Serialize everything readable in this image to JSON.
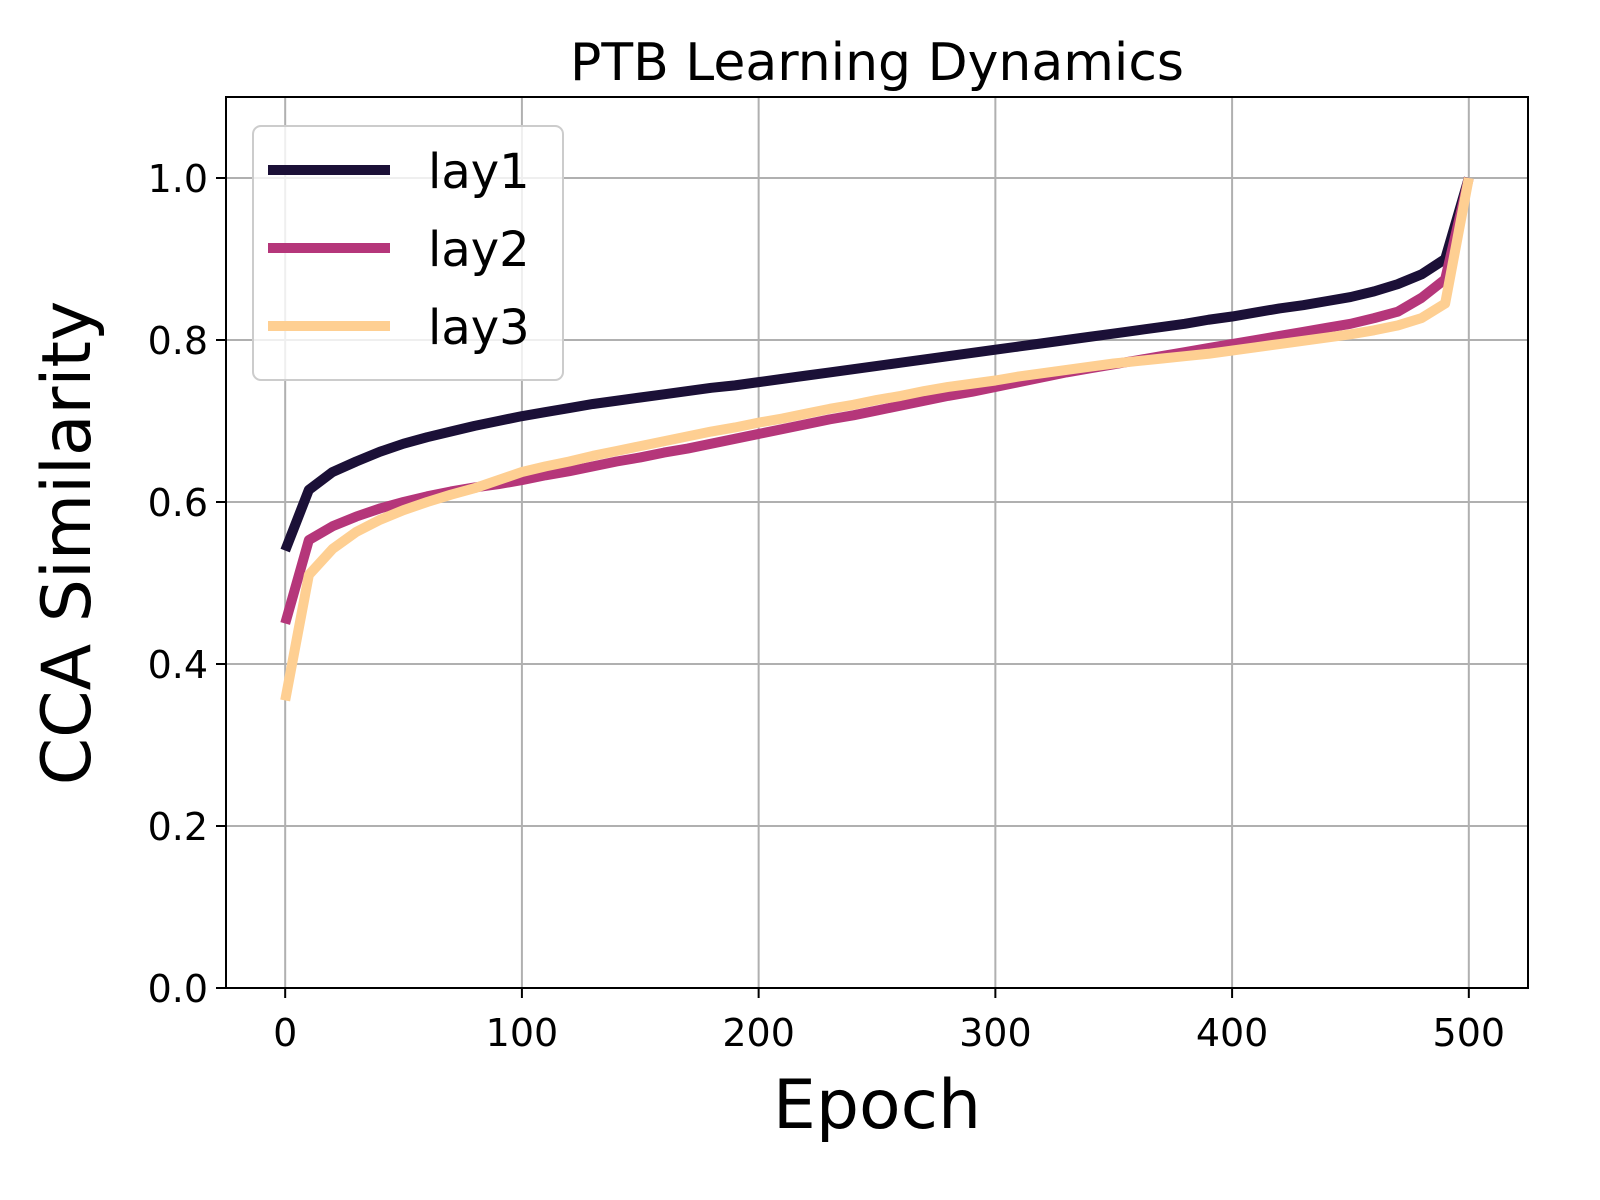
{
  "chart_data": {
    "type": "line",
    "title": "PTB Learning Dynamics",
    "xlabel": "Epoch",
    "ylabel": "CCA Similarity",
    "xlim": [
      -25,
      525
    ],
    "ylim": [
      0,
      1.1
    ],
    "xticks": [
      0,
      100,
      200,
      300,
      400,
      500
    ],
    "xtick_labels": [
      "0",
      "100",
      "200",
      "300",
      "400",
      "500"
    ],
    "yticks": [
      0.0,
      0.2,
      0.4,
      0.6,
      0.8,
      1.0
    ],
    "ytick_labels": [
      "0.0",
      "0.2",
      "0.4",
      "0.6",
      "0.8",
      "1.0"
    ],
    "grid": true,
    "legend_position": "top-left",
    "x": [
      0,
      10,
      20,
      30,
      40,
      50,
      60,
      70,
      80,
      90,
      100,
      110,
      120,
      130,
      140,
      150,
      160,
      170,
      180,
      190,
      200,
      210,
      220,
      230,
      240,
      250,
      260,
      270,
      280,
      290,
      300,
      310,
      320,
      330,
      340,
      350,
      360,
      370,
      380,
      390,
      400,
      410,
      420,
      430,
      440,
      450,
      460,
      470,
      480,
      490,
      500
    ],
    "series": [
      {
        "name": "lay1",
        "color": "#1b1037",
        "values": [
          0.54,
          0.615,
          0.637,
          0.65,
          0.662,
          0.672,
          0.68,
          0.687,
          0.694,
          0.7,
          0.706,
          0.711,
          0.716,
          0.721,
          0.725,
          0.729,
          0.733,
          0.737,
          0.741,
          0.744,
          0.748,
          0.752,
          0.756,
          0.76,
          0.764,
          0.768,
          0.772,
          0.776,
          0.78,
          0.784,
          0.788,
          0.792,
          0.796,
          0.8,
          0.804,
          0.808,
          0.812,
          0.816,
          0.82,
          0.825,
          0.829,
          0.834,
          0.839,
          0.843,
          0.848,
          0.853,
          0.86,
          0.869,
          0.881,
          0.9,
          1.0
        ]
      },
      {
        "name": "lay2",
        "color": "#b5367a",
        "values": [
          0.45,
          0.553,
          0.57,
          0.582,
          0.592,
          0.6,
          0.607,
          0.613,
          0.618,
          0.622,
          0.627,
          0.633,
          0.638,
          0.644,
          0.65,
          0.655,
          0.661,
          0.666,
          0.672,
          0.678,
          0.684,
          0.69,
          0.696,
          0.702,
          0.707,
          0.713,
          0.719,
          0.725,
          0.731,
          0.736,
          0.742,
          0.748,
          0.754,
          0.76,
          0.765,
          0.77,
          0.775,
          0.78,
          0.785,
          0.79,
          0.795,
          0.8,
          0.805,
          0.81,
          0.815,
          0.82,
          0.827,
          0.835,
          0.852,
          0.875,
          1.0
        ]
      },
      {
        "name": "lay3",
        "color": "#fecf92",
        "values": [
          0.355,
          0.51,
          0.542,
          0.563,
          0.578,
          0.59,
          0.6,
          0.609,
          0.617,
          0.627,
          0.637,
          0.644,
          0.65,
          0.657,
          0.663,
          0.669,
          0.675,
          0.681,
          0.687,
          0.692,
          0.698,
          0.703,
          0.709,
          0.715,
          0.72,
          0.726,
          0.731,
          0.737,
          0.742,
          0.746,
          0.75,
          0.755,
          0.759,
          0.763,
          0.767,
          0.771,
          0.774,
          0.777,
          0.78,
          0.783,
          0.787,
          0.791,
          0.795,
          0.799,
          0.803,
          0.807,
          0.812,
          0.818,
          0.827,
          0.845,
          1.0
        ]
      }
    ]
  }
}
